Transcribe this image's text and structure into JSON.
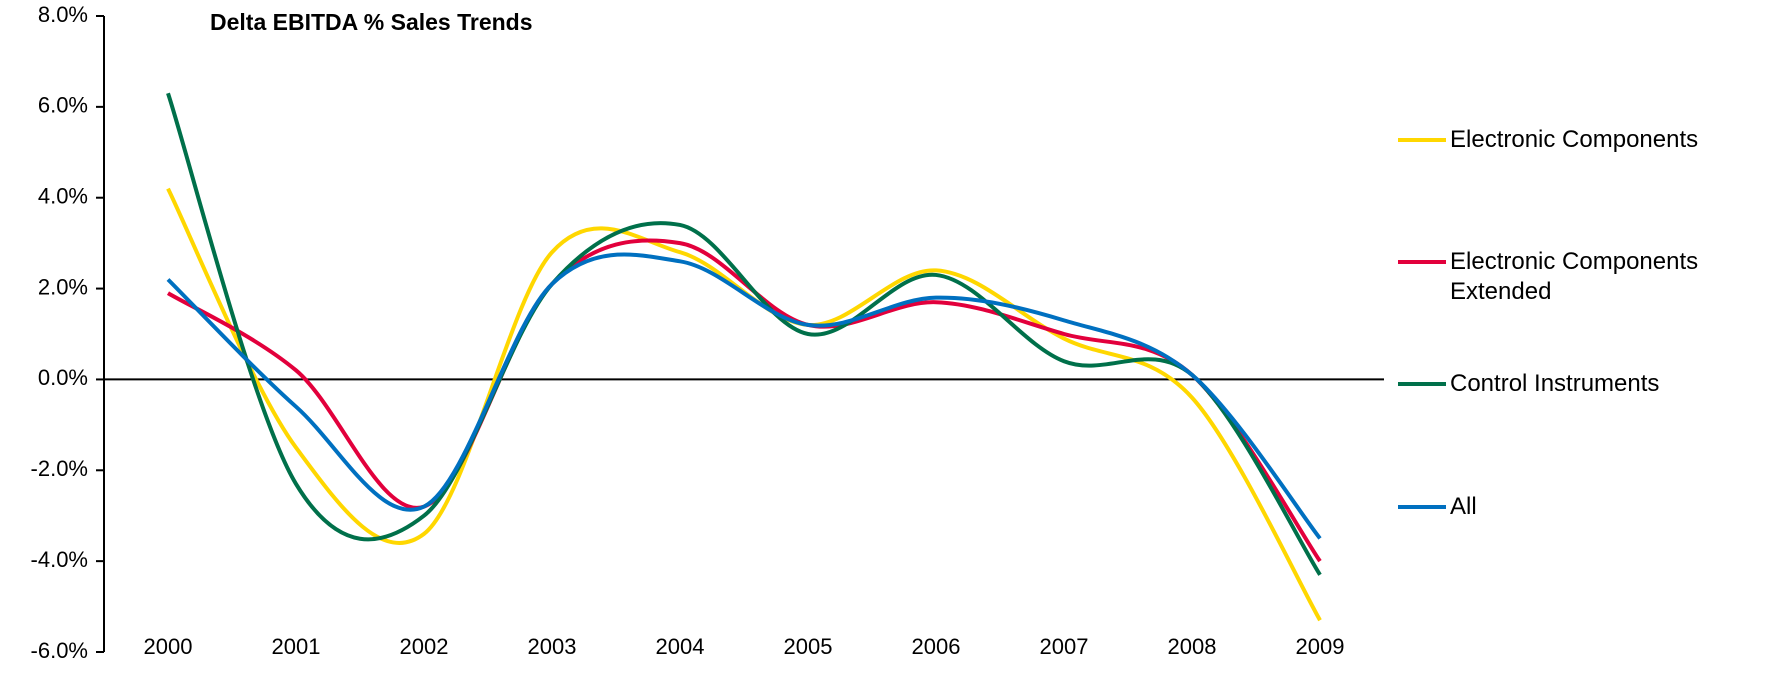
{
  "chart_data": {
    "type": "line",
    "title": "Delta EBITDA % Sales Trends",
    "categories": [
      "2000",
      "2001",
      "2002",
      "2003",
      "2004",
      "2005",
      "2006",
      "2007",
      "2008",
      "2009"
    ],
    "series": [
      {
        "name": "Electronic Components",
        "color": "#ffd700",
        "values": [
          4.2,
          -1.5,
          -3.4,
          2.8,
          2.8,
          1.2,
          2.4,
          0.9,
          -0.4,
          -5.3
        ]
      },
      {
        "name": "Electronic Components Extended",
        "color": "#e2003c",
        "values": [
          1.9,
          0.2,
          -2.8,
          2.1,
          3.0,
          1.2,
          1.7,
          1.0,
          0.1,
          -4.0
        ]
      },
      {
        "name": "Control Instruments",
        "color": "#00704a",
        "values": [
          6.3,
          -2.3,
          -3.0,
          2.1,
          3.4,
          1.0,
          2.3,
          0.4,
          0.1,
          -4.3
        ]
      },
      {
        "name": "All",
        "color": "#0070c0",
        "values": [
          2.2,
          -0.6,
          -2.8,
          2.1,
          2.6,
          1.2,
          1.8,
          1.3,
          0.1,
          -3.5
        ]
      }
    ],
    "ylim": [
      -6,
      8
    ],
    "yticks": [
      {
        "value": -6,
        "label": "-6.0%"
      },
      {
        "value": -4,
        "label": "-4.0%"
      },
      {
        "value": -2,
        "label": "-2.0%"
      },
      {
        "value": 0,
        "label": "0.0%"
      },
      {
        "value": 2,
        "label": "2.0%"
      },
      {
        "value": 4,
        "label": "4.0%"
      },
      {
        "value": 6,
        "label": "6.0%"
      },
      {
        "value": 8,
        "label": "8.0%"
      }
    ],
    "smooth": true
  }
}
